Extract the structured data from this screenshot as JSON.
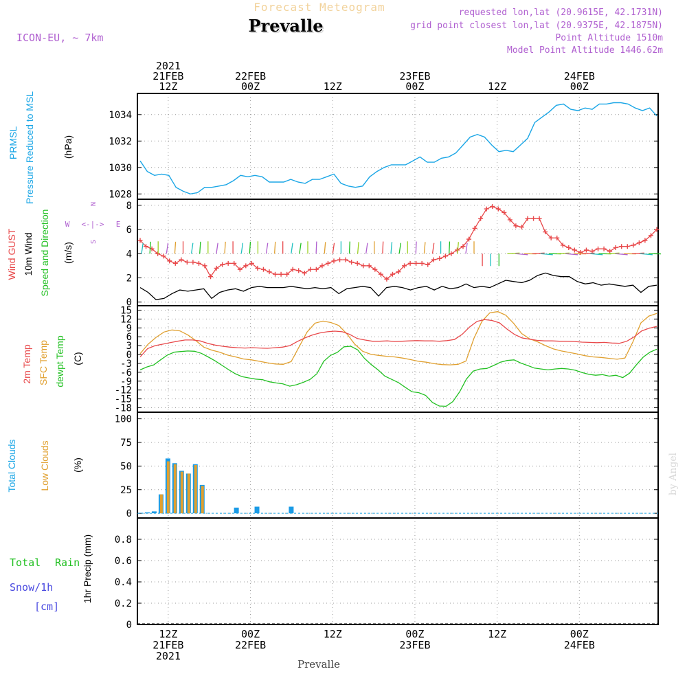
{
  "header": {
    "forecast_title": "Forecast Meteogram",
    "location": "Prevalle",
    "model": "ICON-EU, ~ 7km",
    "requested": "requested lon,lat (20.9615E, 42.1731N)",
    "grid_point": "grid point closest lon,lat (20.9375E, 42.1875N)",
    "point_altitude": "Point Altitude 1510m",
    "model_altitude": "Model Point Altitude 1446.62m",
    "credit": "by Angel"
  },
  "time_axis": {
    "top_labels": [
      {
        "hour": 12,
        "lines": [
          "2021",
          "21FEB",
          "12Z"
        ]
      },
      {
        "hour": 24,
        "lines": [
          "22FEB",
          "00Z"
        ]
      },
      {
        "hour": 36,
        "lines": [
          "12Z"
        ]
      },
      {
        "hour": 48,
        "lines": [
          "23FEB",
          "00Z"
        ]
      },
      {
        "hour": 60,
        "lines": [
          "12Z"
        ]
      },
      {
        "hour": 72,
        "lines": [
          "24FEB",
          "00Z"
        ]
      }
    ],
    "bottom_labels": [
      {
        "hour": 12,
        "lines": [
          "12Z",
          "21FEB",
          "2021"
        ]
      },
      {
        "hour": 24,
        "lines": [
          "00Z",
          "22FEB"
        ]
      },
      {
        "hour": 36,
        "lines": [
          "12Z"
        ]
      },
      {
        "hour": 48,
        "lines": [
          "00Z",
          "23FEB"
        ]
      },
      {
        "hour": 60,
        "lines": [
          "12Z"
        ]
      },
      {
        "hour": 72,
        "lines": [
          "00Z",
          "24FEB"
        ]
      }
    ],
    "footer_label": "Prevalle",
    "start_hour": 7.5,
    "end_hour": 83.5
  },
  "colors": {
    "pressure": "#1aa6e6",
    "gust": "#e8484a",
    "wind": "#000000",
    "temp2m": "#e8484a",
    "sfc_temp": "#e0a030",
    "dewpt": "#22c022",
    "total_clouds": "#1a9be6",
    "low_clouds": "#e0a030",
    "rain": "#22c022",
    "snow": "#4a4ae0",
    "purple": "#b060d0"
  },
  "chart_data": [
    {
      "type": "line",
      "panel": "pressure",
      "labels": {
        "line1": "PRMSL",
        "line2": "Pressure Reduced to MSL",
        "unit": "(hPa)"
      },
      "yticks": [
        1028,
        1030,
        1032,
        1034
      ],
      "ylim": [
        1027.6,
        1035.6
      ],
      "grid": true,
      "series": [
        {
          "values": [
            1030.5,
            1029.7,
            1029.4,
            1029.5,
            1029.4,
            1028.5,
            1028.2,
            1028.0,
            1028.1,
            1028.5,
            1028.5,
            1028.6,
            1028.7,
            1029.0,
            1029.4,
            1029.3,
            1029.4,
            1029.3,
            1028.9,
            1028.9,
            1028.9,
            1029.1,
            1028.9,
            1028.8,
            1029.1,
            1029.1,
            1029.3,
            1029.5,
            1028.8,
            1028.6,
            1028.5,
            1028.6,
            1029.3,
            1029.7,
            1030.0,
            1030.2,
            1030.2,
            1030.2,
            1030.5,
            1030.8,
            1030.4,
            1030.4,
            1030.7,
            1030.8,
            1031.1,
            1031.7,
            1032.3,
            1032.5,
            1032.3,
            1031.7,
            1031.2,
            1031.3,
            1031.2,
            1031.7,
            1032.2,
            1033.4,
            1033.8,
            1034.2,
            1034.7,
            1034.8,
            1034.4,
            1034.3,
            1034.5,
            1034.4,
            1034.8,
            1034.8,
            1034.9,
            1034.9,
            1034.8,
            1034.5,
            1034.3,
            1034.5,
            1033.9
          ]
        }
      ]
    },
    {
      "type": "line",
      "panel": "wind",
      "labels": {
        "gust": "Wind GUST",
        "wind": "10m Wind",
        "speed": "Speed and Direction",
        "unit": "(m/s)",
        "compass_n": "N",
        "compass_s": "S",
        "compass_w": "W",
        "compass_e": "E",
        "compass_mid": "<-|->"
      },
      "yticks": [
        0,
        2,
        4,
        6,
        8
      ],
      "ylim": [
        -0.3,
        8.5
      ],
      "grid": true,
      "gust": [
        5.1,
        4.6,
        4.4,
        4.0,
        3.8,
        3.4,
        3.2,
        3.5,
        3.3,
        3.3,
        3.2,
        3.0,
        2.1,
        2.8,
        3.1,
        3.2,
        3.2,
        2.7,
        3.0,
        3.2,
        2.8,
        2.7,
        2.5,
        2.3,
        2.3,
        2.3,
        2.7,
        2.6,
        2.4,
        2.7,
        2.7,
        3.0,
        3.2,
        3.4,
        3.5,
        3.5,
        3.3,
        3.2,
        3.0,
        3.0,
        2.7,
        2.3,
        1.9,
        2.3,
        2.5,
        3.0,
        3.2,
        3.2,
        3.2,
        3.1,
        3.5,
        3.6,
        3.8,
        4.0,
        4.3,
        4.6,
        5.2,
        6.1,
        6.9,
        7.7,
        7.9,
        7.7,
        7.4,
        6.8,
        6.3,
        6.2,
        6.9,
        6.9,
        6.9,
        5.8,
        5.3,
        5.3,
        4.7,
        4.5,
        4.3,
        4.1,
        4.3,
        4.2,
        4.4,
        4.4,
        4.2,
        4.5,
        4.6,
        4.6,
        4.7,
        4.9,
        5.1,
        5.5,
        6.0
      ],
      "wind": [
        1.2,
        0.8,
        0.2,
        0.3,
        0.7,
        1.0,
        0.9,
        1.0,
        1.1,
        0.3,
        0.8,
        1.0,
        1.1,
        0.9,
        1.2,
        1.3,
        1.2,
        1.2,
        1.2,
        1.3,
        1.2,
        1.1,
        1.2,
        1.1,
        1.2,
        0.7,
        1.1,
        1.2,
        1.3,
        1.2,
        0.5,
        1.2,
        1.3,
        1.2,
        1.0,
        1.2,
        1.3,
        1.0,
        1.3,
        1.1,
        1.2,
        1.5,
        1.2,
        1.3,
        1.2,
        1.5,
        1.8,
        1.7,
        1.6,
        1.8,
        2.2,
        2.4,
        2.2,
        2.1,
        2.1,
        1.7,
        1.5,
        1.6,
        1.4,
        1.5,
        1.4,
        1.3,
        1.4,
        0.8,
        1.3,
        1.4
      ]
    },
    {
      "type": "line",
      "panel": "temperature",
      "labels": {
        "t2m": "2m Temp",
        "sfc": "SFC Temp",
        "dew": "dewpt Temp",
        "unit": "(C)"
      },
      "yticks": [
        15,
        12,
        9,
        6,
        3,
        0,
        -3,
        -6,
        -9,
        -12,
        -15,
        -18
      ],
      "ylim": [
        -19.5,
        16.5
      ],
      "grid": true,
      "t2m": [
        -0.8,
        2.0,
        3.0,
        3.5,
        4.0,
        4.5,
        4.9,
        4.9,
        4.6,
        3.8,
        3.2,
        2.8,
        2.5,
        2.3,
        2.2,
        2.3,
        2.2,
        2.1,
        2.3,
        2.5,
        3.0,
        4.4,
        5.6,
        6.6,
        7.3,
        7.7,
        7.9,
        7.7,
        6.8,
        5.4,
        4.9,
        4.5,
        4.5,
        4.6,
        4.4,
        4.5,
        4.6,
        4.7,
        4.6,
        4.6,
        4.5,
        4.7,
        5.1,
        6.8,
        9.3,
        11.2,
        11.8,
        11.5,
        10.7,
        8.6,
        6.8,
        5.6,
        5.2,
        4.8,
        4.6,
        4.6,
        4.5,
        4.5,
        4.4,
        4.2,
        4.1,
        4.0,
        4.1,
        3.9,
        3.8,
        4.5,
        6.0,
        8.0,
        8.9,
        9.5
      ],
      "sfc": [
        0.3,
        3.5,
        5.8,
        7.6,
        8.3,
        8.0,
        6.6,
        4.7,
        2.5,
        1.5,
        0.8,
        -0.2,
        -0.8,
        -1.5,
        -1.8,
        -2.3,
        -2.8,
        -3.2,
        -3.3,
        -2.4,
        2.6,
        7.6,
        10.6,
        11.3,
        10.8,
        9.8,
        7.0,
        3.5,
        1.1,
        0.1,
        -0.3,
        -0.6,
        -0.8,
        -1.2,
        -1.7,
        -2.3,
        -2.6,
        -3.1,
        -3.4,
        -3.5,
        -3.3,
        -2.2,
        5.5,
        11.2,
        14.1,
        14.5,
        13.3,
        10.5,
        7.1,
        5.3,
        4.3,
        3.0,
        1.9,
        1.2,
        0.7,
        0.2,
        -0.4,
        -0.8,
        -1.0,
        -1.3,
        -1.6,
        -1.2,
        4.3,
        10.7,
        13.0,
        13.9
      ],
      "dew": [
        -5.2,
        -4.2,
        -3.5,
        -1.8,
        -0.2,
        0.8,
        1.0,
        1.2,
        1.1,
        0.4,
        -0.8,
        -2.1,
        -3.6,
        -5.1,
        -6.5,
        -7.5,
        -7.9,
        -8.3,
        -8.5,
        -9.2,
        -9.6,
        -9.9,
        -10.7,
        -10.2,
        -9.4,
        -8.4,
        -6.5,
        -2.3,
        -0.3,
        0.7,
        2.6,
        2.8,
        1.6,
        -1.3,
        -3.4,
        -5.2,
        -7.3,
        -8.4,
        -9.5,
        -11.1,
        -12.6,
        -12.9,
        -13.8,
        -16.2,
        -17.4,
        -17.5,
        -15.9,
        -12.6,
        -8.3,
        -5.6,
        -4.9,
        -4.7,
        -3.7,
        -2.6,
        -2.0,
        -1.8,
        -2.9,
        -3.7,
        -4.6,
        -4.9,
        -5.2,
        -4.9,
        -4.7,
        -4.9,
        -5.3,
        -6.1,
        -6.7,
        -7.0,
        -6.8,
        -7.3,
        -7.0,
        -7.8,
        -6.3,
        -3.5,
        -0.9,
        0.8,
        1.8
      ]
    },
    {
      "type": "bar",
      "panel": "clouds",
      "labels": {
        "total": "Total Clouds",
        "low": "Low Clouds",
        "unit": "(%)"
      },
      "yticks": [
        0,
        25,
        50,
        75,
        100
      ],
      "ylim": [
        -5,
        107
      ],
      "grid": true,
      "x_hours": [
        8,
        9,
        10,
        11,
        12,
        13,
        14,
        15,
        16,
        17,
        18,
        22,
        25,
        30
      ],
      "total": [
        0.5,
        1,
        2,
        20,
        58,
        53,
        45,
        42,
        52,
        30,
        0,
        6,
        7,
        7
      ],
      "low": [
        0,
        0,
        0,
        20,
        55,
        52,
        44,
        42,
        51,
        29,
        0,
        0,
        0,
        0
      ]
    },
    {
      "type": "bar",
      "panel": "precipitation",
      "labels": {
        "total": "Total",
        "rain": "Rain",
        "snow": "Snow/1h",
        "snow_unit": "[cm]",
        "unit": "1hr Precip (mm)"
      },
      "yticks": [
        0,
        0.2,
        0.4,
        0.6,
        0.8
      ],
      "ylim": [
        0,
        1.0
      ],
      "grid": true,
      "values": []
    }
  ]
}
